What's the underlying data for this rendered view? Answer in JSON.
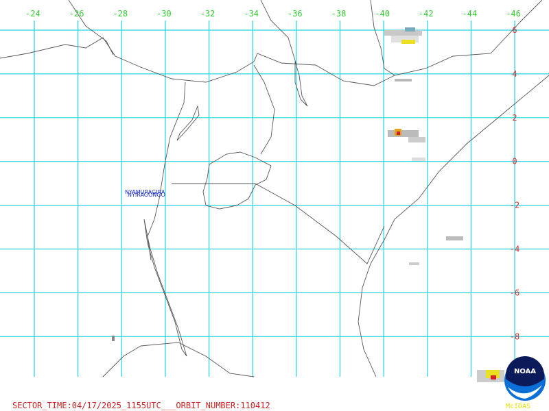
{
  "longitude_labels": [
    "-24",
    "-26",
    "-28",
    "-30",
    "-32",
    "-34",
    "-36",
    "-38",
    "-40",
    "-42",
    "-44",
    "-46"
  ],
  "latitude_labels": [
    "6",
    "4",
    "2",
    "0",
    "-2",
    "-4",
    "-6",
    "-8"
  ],
  "volcano_labels": [
    "NYAMURAGIRA",
    "NYIRAGONGO"
  ],
  "footer": "SECTOR_TIME:04/17/2025_1155UTC___ORBIT_NUMBER:110412",
  "logo": {
    "text": "NOAA",
    "caption": "McIDAS"
  }
}
